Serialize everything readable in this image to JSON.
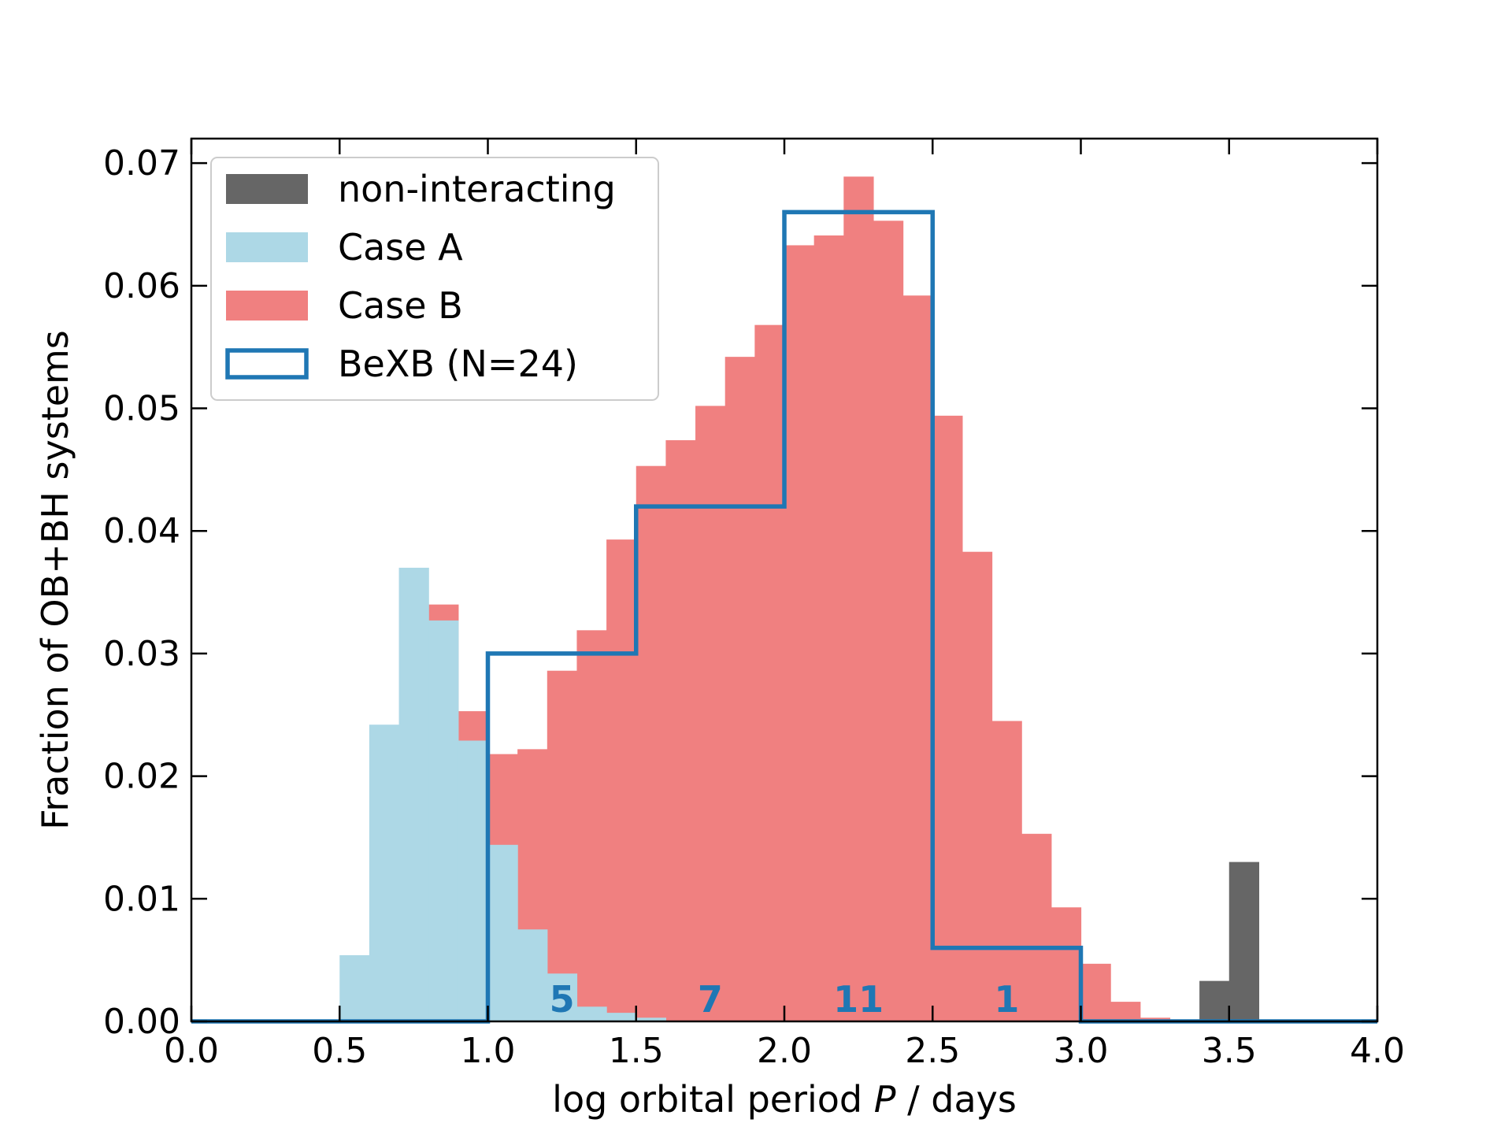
{
  "chart_data": {
    "type": "histogram",
    "xlabel_prefix": "log orbital period ",
    "xlabel_var": "P",
    "xlabel_suffix": " / days",
    "ylabel": "Fraction of OB+BH systems",
    "xlim": [
      0.0,
      4.0
    ],
    "ylim": [
      0.0,
      0.072
    ],
    "xticks": [
      0.0,
      0.5,
      1.0,
      1.5,
      2.0,
      2.5,
      3.0,
      3.5,
      4.0
    ],
    "xtick_labels": [
      "0.0",
      "0.5",
      "1.0",
      "1.5",
      "2.0",
      "2.5",
      "3.0",
      "3.5",
      "4.0"
    ],
    "yticks": [
      0.0,
      0.01,
      0.02,
      0.03,
      0.04,
      0.05,
      0.06,
      0.07
    ],
    "ytick_labels": [
      "0.00",
      "0.01",
      "0.02",
      "0.03",
      "0.04",
      "0.05",
      "0.06",
      "0.07"
    ],
    "colors": {
      "non_interacting": "#666666",
      "case_a": "#add8e6",
      "case_b": "#f08080",
      "bexb": "#1f77b4"
    },
    "bin_edges": [
      0.0,
      0.1,
      0.2,
      0.3,
      0.4,
      0.5,
      0.6,
      0.7,
      0.8,
      0.9,
      1.0,
      1.1,
      1.2,
      1.3,
      1.4,
      1.5,
      1.6,
      1.7,
      1.8,
      1.9,
      2.0,
      2.1,
      2.2,
      2.3,
      2.4,
      2.5,
      2.6,
      2.7,
      2.8,
      2.9,
      3.0,
      3.1,
      3.2,
      3.3,
      3.4,
      3.5,
      3.6,
      3.7,
      3.8,
      3.9,
      4.0
    ],
    "series": [
      {
        "name": "Case B",
        "color_key": "case_b",
        "values": [
          0,
          0,
          0,
          0,
          0,
          0,
          0,
          0,
          0.034,
          0.0253,
          0.0218,
          0.0222,
          0.0286,
          0.0319,
          0.0393,
          0.0453,
          0.0474,
          0.0502,
          0.0542,
          0.0568,
          0.0633,
          0.0641,
          0.0689,
          0.0653,
          0.0592,
          0.0494,
          0.0383,
          0.0245,
          0.0153,
          0.0093,
          0.0047,
          0.0016,
          0.0003,
          0,
          0,
          0,
          0,
          0,
          0,
          0
        ]
      },
      {
        "name": "Case A",
        "color_key": "case_a",
        "values": [
          0,
          0,
          0,
          0,
          0,
          0.0054,
          0.0242,
          0.037,
          0.0327,
          0.0229,
          0.0144,
          0.0075,
          0.0039,
          0.0012,
          0.0007,
          0.0003,
          0,
          0,
          0,
          0,
          0,
          0,
          0,
          0,
          0,
          0,
          0,
          0,
          0,
          0,
          0,
          0,
          0,
          0,
          0,
          0,
          0,
          0,
          0,
          0
        ]
      },
      {
        "name": "non-interacting",
        "color_key": "non_interacting",
        "values": [
          0,
          0,
          0,
          0,
          0,
          0,
          0,
          0,
          0,
          0,
          0,
          0,
          0,
          0,
          0,
          0,
          0,
          0,
          0,
          0,
          0,
          0,
          0,
          0,
          0,
          0,
          0,
          0,
          0,
          0,
          0,
          0,
          0,
          0,
          0.0033,
          0.013,
          0,
          0,
          0,
          0
        ]
      }
    ],
    "bexb": {
      "name": "BeXB (N=24)",
      "bin_edges": [
        0.0,
        0.5,
        1.0,
        1.5,
        2.0,
        2.5,
        3.0,
        3.5,
        4.0
      ],
      "values": [
        0,
        0,
        0.03,
        0.042,
        0.066,
        0.006,
        0,
        0
      ],
      "counts": [
        {
          "x": 1.25,
          "label": "5"
        },
        {
          "x": 1.75,
          "label": "7"
        },
        {
          "x": 2.25,
          "label": "11"
        },
        {
          "x": 2.75,
          "label": "1"
        }
      ]
    },
    "legend": {
      "position": "top-left",
      "entries": [
        {
          "label": "non-interacting",
          "color_key": "non_interacting",
          "style": "fill"
        },
        {
          "label": "Case A",
          "color_key": "case_a",
          "style": "fill"
        },
        {
          "label": "Case B",
          "color_key": "case_b",
          "style": "fill"
        },
        {
          "label": "BeXB (N=24)",
          "color_key": "bexb",
          "style": "outline"
        }
      ]
    }
  }
}
